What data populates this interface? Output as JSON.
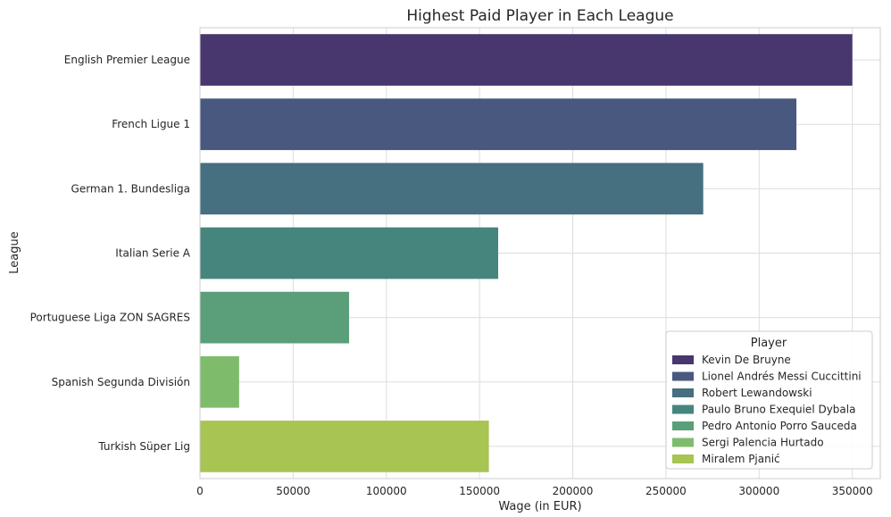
{
  "chart_data": {
    "type": "bar",
    "orientation": "horizontal",
    "title": "Highest Paid Player in Each League",
    "xlabel": "Wage (in EUR)",
    "ylabel": "League",
    "xlim": [
      0,
      365000
    ],
    "xticks": [
      0,
      50000,
      100000,
      150000,
      200000,
      250000,
      300000,
      350000
    ],
    "xtick_labels": [
      "0",
      "50000",
      "100000",
      "150000",
      "200000",
      "250000",
      "300000",
      "350000"
    ],
    "grid": true,
    "legend_title": "Player",
    "legend_position": "lower-right",
    "categories": [
      "English Premier League",
      "French Ligue 1",
      "German 1. Bundesliga",
      "Italian Serie A",
      "Portuguese Liga ZON SAGRES",
      "Spanish Segunda División",
      "Turkish Süper Lig"
    ],
    "players": [
      "Kevin De Bruyne",
      "Lionel Andrés Messi Cuccittini",
      "Robert Lewandowski",
      "Paulo Bruno Exequiel Dybala",
      "Pedro Antonio Porro Sauceda",
      "Sergi Palencia Hurtado",
      "Miralem Pjanić"
    ],
    "values": [
      350000,
      320000,
      270000,
      160000,
      80000,
      21000,
      155000
    ],
    "colors": [
      "#48366e",
      "#49587f",
      "#466f7f",
      "#46857d",
      "#5a9f79",
      "#7ebc6c",
      "#a8c453"
    ]
  }
}
